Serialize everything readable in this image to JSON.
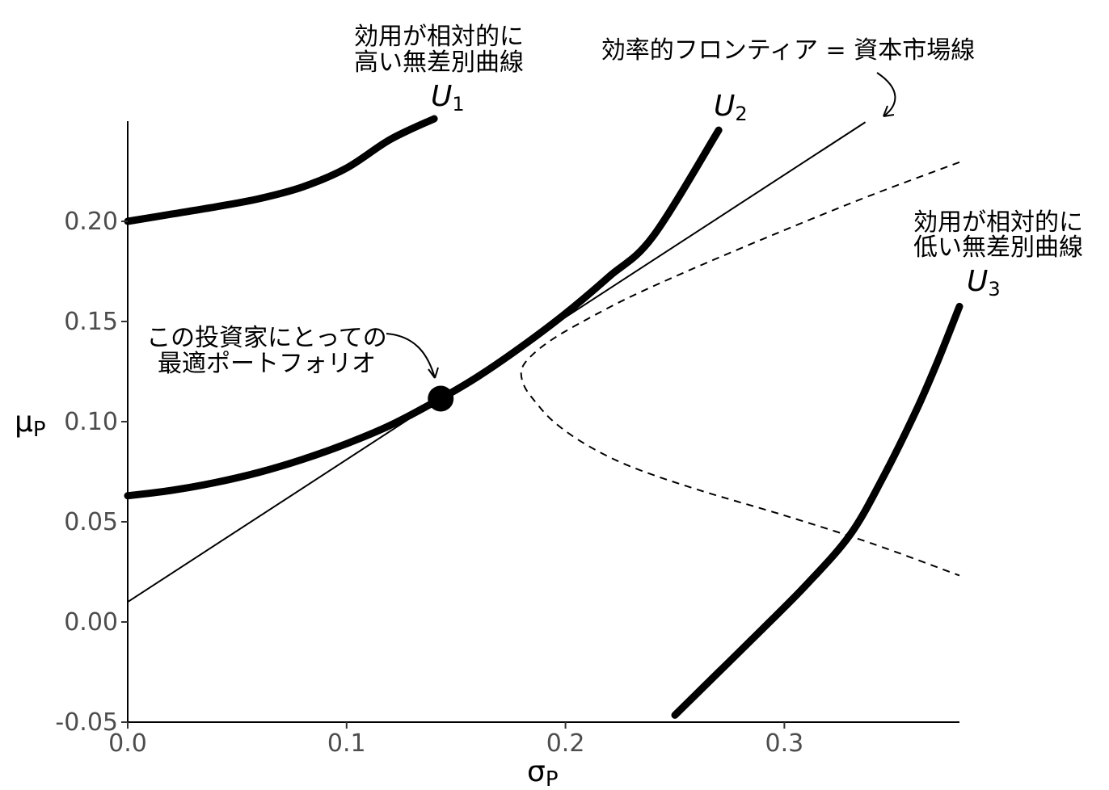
{
  "chart_data": {
    "type": "line",
    "xlabel": "σP",
    "ylabel": "μP",
    "xlim": [
      0,
      0.38
    ],
    "ylim": [
      -0.05,
      0.25
    ],
    "x_ticks": [
      "0.0",
      "0.1",
      "0.2",
      "0.3"
    ],
    "x_tick_values": [
      0,
      0.1,
      0.2,
      0.3
    ],
    "y_ticks": [
      "-0.05",
      "0.00",
      "0.05",
      "0.10",
      "0.15",
      "0.20"
    ],
    "y_tick_values": [
      -0.05,
      0.0,
      0.05,
      0.1,
      0.15,
      0.2
    ],
    "series": [
      {
        "label": "U₁",
        "style": "thick",
        "x": [
          0.0,
          0.02,
          0.04,
          0.06,
          0.08,
          0.1,
          0.12,
          0.14
        ],
        "y": [
          0.2,
          0.2036,
          0.2072,
          0.2113,
          0.2172,
          0.2266,
          0.2409,
          0.2512
        ]
      },
      {
        "label": "U₂",
        "style": "thick",
        "x": [
          0.0,
          0.02,
          0.04,
          0.06,
          0.08,
          0.1,
          0.12,
          0.143,
          0.16,
          0.18,
          0.2,
          0.22,
          0.24,
          0.27
        ],
        "y": [
          0.063,
          0.0657,
          0.0696,
          0.0747,
          0.0812,
          0.089,
          0.0982,
          0.1115,
          0.1225,
          0.1375,
          0.154,
          0.1725,
          0.1925,
          0.2455
        ]
      },
      {
        "label": "U₃",
        "style": "thick",
        "x": [
          0.25,
          0.27,
          0.29,
          0.31,
          0.33,
          0.345,
          0.36,
          0.37,
          0.38
        ],
        "y": [
          -0.0465,
          -0.025,
          -0.0035,
          0.0185,
          0.0435,
          0.072,
          0.105,
          0.13,
          0.1575
        ]
      },
      {
        "label": "効率的フロンティア = 資本市場線",
        "style": "thin",
        "x": [
          0.0,
          0.337
        ],
        "y": [
          0.01,
          0.2495
        ]
      },
      {
        "label": "frontier",
        "style": "dashed",
        "x": [
          0.38,
          0.34,
          0.3,
          0.26,
          0.23,
          0.21,
          0.195,
          0.185,
          0.18,
          0.181,
          0.186,
          0.195,
          0.21,
          0.23,
          0.26,
          0.3,
          0.34,
          0.38
        ],
        "y": [
          0.2295,
          0.2132,
          0.1956,
          0.1772,
          0.1625,
          0.1512,
          0.1418,
          0.1335,
          0.1262,
          0.1182,
          0.1102,
          0.0996,
          0.0882,
          0.0775,
          0.0662,
          0.0532,
          0.0392,
          0.0232
        ]
      }
    ],
    "optimal_point": {
      "x": 0.143,
      "y": 0.1115
    },
    "annotations": {
      "u1_text": [
        "効用が相対的に",
        "高い無差別曲線"
      ],
      "u3_text": [
        "効用が相対的に",
        "低い無差別曲線"
      ],
      "cml_text": "効率的フロンティア = 資本市場線",
      "optimal_text": [
        "この投資家にとっての",
        "最適ポートフォリオ"
      ]
    },
    "curve_labels": [
      {
        "base": "U",
        "sub": "1"
      },
      {
        "base": "U",
        "sub": "2"
      },
      {
        "base": "U",
        "sub": "3"
      }
    ]
  }
}
